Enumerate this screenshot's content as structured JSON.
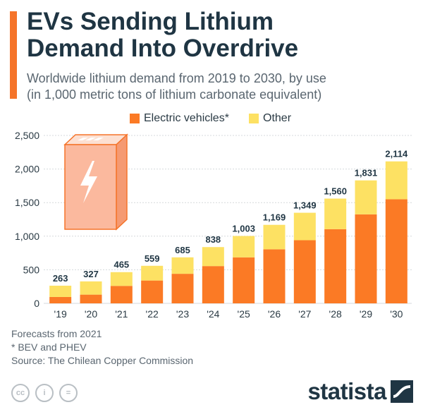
{
  "header": {
    "title_line1": "EVs Sending Lithium",
    "title_line2": "Demand Into Overdrive",
    "subtitle_line1": "Worldwide lithium demand from 2019 to 2030, by use",
    "subtitle_line2": "(in 1,000 metric tons of lithium carbonate equivalent)"
  },
  "colors": {
    "accent": "#f5742a",
    "ev": "#fb7a25",
    "other": "#fde163",
    "grid": "#d5d9dc",
    "text": "#2a3a44",
    "battery_face": "#fbb99e",
    "battery_top": "#fde0d2",
    "battery_side": "#f59a72",
    "battery_edge": "#f5742a"
  },
  "chart_data": {
    "type": "bar",
    "stacked": true,
    "title": "EVs Sending Lithium Demand Into Overdrive",
    "xlabel": "",
    "ylabel": "",
    "ylim": [
      0,
      2500
    ],
    "yticks": [
      0,
      500,
      1000,
      1500,
      2000,
      2500
    ],
    "ytick_labels": [
      "0",
      "500",
      "1,000",
      "1,500",
      "2,000",
      "2,500"
    ],
    "categories": [
      "'19",
      "'20",
      "'21",
      "'22",
      "'23",
      "'24",
      "'25",
      "'26",
      "'27",
      "'28",
      "'29",
      "'30"
    ],
    "series": [
      {
        "name": "Electric vehicles*",
        "color": "#fb7a25",
        "values": [
          95,
          130,
          260,
          340,
          440,
          555,
          685,
          805,
          940,
          1105,
          1325,
          1550
        ]
      },
      {
        "name": "Other",
        "color": "#fde163",
        "values": [
          168,
          197,
          205,
          219,
          245,
          283,
          318,
          364,
          409,
          455,
          506,
          564
        ]
      }
    ],
    "totals": [
      263,
      327,
      465,
      559,
      685,
      838,
      1003,
      1169,
      1349,
      1560,
      1831,
      2114
    ],
    "total_labels": [
      "263",
      "327",
      "465",
      "559",
      "685",
      "838",
      "1,003",
      "1,169",
      "1,349",
      "1,560",
      "1,831",
      "2,114"
    ],
    "grid": true,
    "legend_position": "top-center"
  },
  "legend": {
    "ev_label": "Electric vehicles*",
    "other_label": "Other"
  },
  "footer": {
    "note1": "Forecasts from 2021",
    "note2": "* BEV and PHEV",
    "source": "Source: The Chilean Copper Commission",
    "license_icons": [
      "cc",
      "i",
      "="
    ],
    "brand": "statista"
  },
  "illustration": {
    "icon": "battery-icon"
  }
}
